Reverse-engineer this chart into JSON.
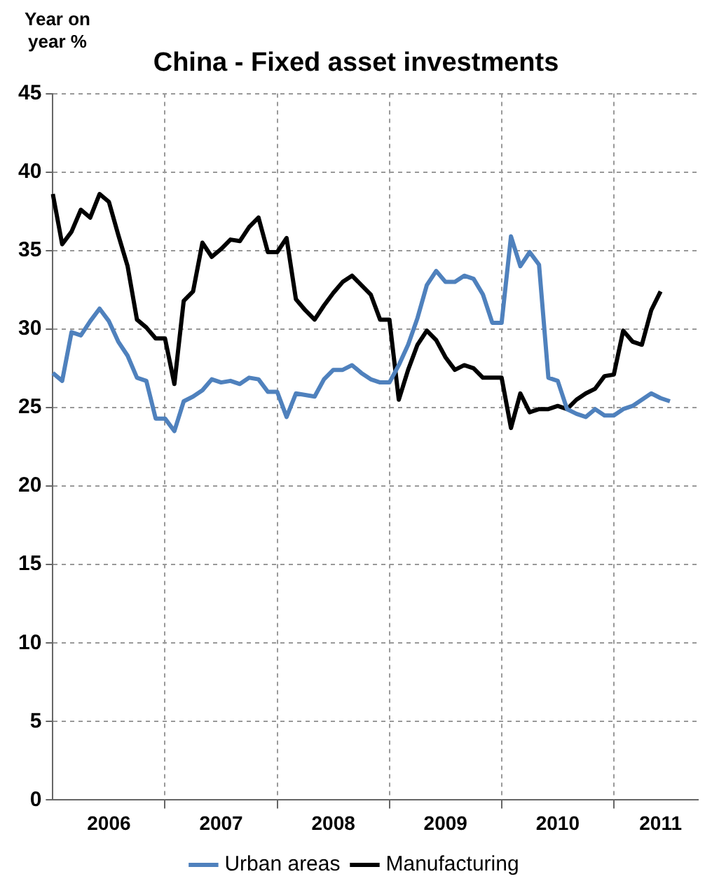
{
  "chart_data": {
    "type": "line",
    "title": "China - Fixed asset investments",
    "ylabel": "Year on year %",
    "categories": [
      null,
      null,
      null,
      null,
      null,
      null,
      "2006",
      null,
      null,
      null,
      null,
      null,
      null,
      null,
      null,
      null,
      null,
      null,
      "2007",
      null,
      null,
      null,
      null,
      null,
      null,
      null,
      null,
      null,
      null,
      null,
      "2008",
      null,
      null,
      null,
      null,
      null,
      null,
      null,
      null,
      null,
      null,
      null,
      "2009",
      null,
      null,
      null,
      null,
      null,
      null,
      null,
      null,
      null,
      null,
      null,
      "2010",
      null,
      null,
      null,
      null,
      null,
      null,
      null,
      null,
      null,
      null,
      "2011",
      null,
      null,
      null,
      null
    ],
    "series": [
      {
        "name": "Urban areas",
        "color": "#4f81bd",
        "values": [
          27.2,
          26.7,
          29.8,
          29.6,
          30.5,
          31.3,
          30.5,
          29.2,
          28.3,
          26.9,
          26.7,
          24.3,
          24.3,
          23.5,
          25.4,
          25.7,
          26.1,
          26.8,
          26.6,
          26.7,
          26.5,
          26.9,
          26.8,
          26.0,
          26.0,
          24.4,
          25.9,
          25.8,
          25.7,
          26.8,
          27.4,
          27.4,
          27.7,
          27.2,
          26.8,
          26.6,
          26.6,
          27.7,
          29.0,
          30.7,
          32.8,
          33.7,
          33.0,
          33.0,
          33.4,
          33.2,
          32.2,
          30.4,
          30.4,
          35.9,
          34.0,
          34.9,
          34.1,
          26.9,
          26.7,
          24.9,
          24.6,
          24.4,
          24.9,
          24.5,
          24.5,
          24.9,
          25.1,
          25.5,
          25.9,
          25.6,
          25.4,
          null,
          null,
          null
        ]
      },
      {
        "name": "Manufacturing",
        "color": "#000000",
        "values": [
          38.6,
          35.4,
          36.2,
          37.6,
          37.1,
          38.6,
          38.1,
          36.0,
          34.0,
          30.6,
          30.1,
          29.4,
          29.4,
          26.5,
          31.8,
          32.4,
          35.5,
          34.6,
          35.1,
          35.7,
          35.6,
          36.5,
          37.1,
          34.9,
          34.9,
          35.8,
          31.9,
          31.2,
          30.6,
          31.5,
          32.3,
          33.0,
          33.4,
          32.8,
          32.2,
          30.6,
          30.6,
          25.5,
          27.4,
          29.0,
          29.9,
          29.3,
          28.2,
          27.4,
          27.7,
          27.5,
          26.9,
          26.9,
          26.9,
          23.7,
          25.9,
          24.7,
          24.9,
          24.9,
          25.1,
          24.9,
          25.5,
          25.9,
          26.2,
          27.0,
          27.1,
          29.9,
          29.2,
          29.0,
          31.2,
          32.4,
          null,
          null,
          null,
          null
        ]
      }
    ],
    "ylim": [
      0,
      45
    ],
    "yticks": [
      0,
      5,
      10,
      15,
      20,
      25,
      30,
      35,
      40,
      45
    ],
    "grid": true,
    "legend": "bottom",
    "marker": "none",
    "line_style": "solid"
  }
}
